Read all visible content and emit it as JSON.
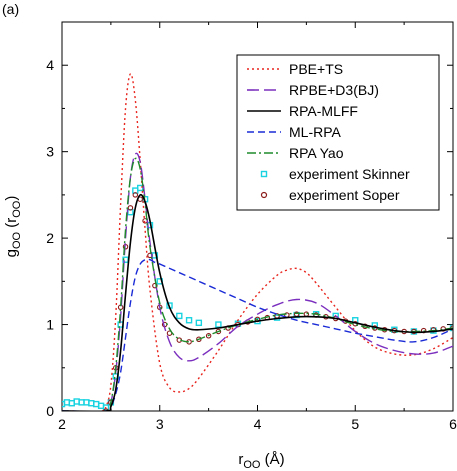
{
  "panel_label": "(a)",
  "chart_data": {
    "type": "line",
    "xlabel_main": "r",
    "xlabel_sub": "OO",
    "xlabel_unit": " (Å)",
    "ylabel_main": "g",
    "ylabel_sub": "OO",
    "ylabel_arg_open": " (r",
    "ylabel_arg_sub": "OO",
    "ylabel_arg_close": ")",
    "xlim": [
      2,
      6
    ],
    "ylim": [
      0,
      4.5
    ],
    "xticks": [
      2,
      3,
      4,
      5,
      6
    ],
    "yticks": [
      0,
      1,
      2,
      3,
      4
    ],
    "legend_position": "top-right",
    "series": [
      {
        "name": "PBE+TS",
        "color": "#e8251e",
        "style": "dotted",
        "x": [
          2.0,
          2.4,
          2.45,
          2.5,
          2.55,
          2.6,
          2.65,
          2.7,
          2.75,
          2.8,
          2.85,
          2.9,
          3.0,
          3.1,
          3.2,
          3.3,
          3.4,
          3.6,
          3.8,
          4.0,
          4.2,
          4.3,
          4.4,
          4.5,
          4.6,
          4.8,
          5.0,
          5.2,
          5.4,
          5.6,
          5.8,
          6.0
        ],
        "y": [
          0,
          0,
          0.05,
          0.3,
          1.1,
          2.4,
          3.5,
          3.9,
          3.6,
          2.9,
          2.1,
          1.4,
          0.55,
          0.27,
          0.22,
          0.26,
          0.38,
          0.7,
          1.05,
          1.35,
          1.57,
          1.63,
          1.65,
          1.6,
          1.48,
          1.2,
          0.93,
          0.74,
          0.66,
          0.65,
          0.72,
          0.85
        ]
      },
      {
        "name": "RPBE+D3(BJ)",
        "color": "#7b2fbe",
        "style": "longdash",
        "x": [
          2.0,
          2.45,
          2.5,
          2.55,
          2.6,
          2.65,
          2.7,
          2.75,
          2.8,
          2.85,
          2.9,
          3.0,
          3.1,
          3.2,
          3.3,
          3.4,
          3.6,
          3.8,
          4.0,
          4.2,
          4.4,
          4.6,
          4.8,
          5.0,
          5.2,
          5.4,
          5.6,
          5.8,
          6.0
        ],
        "y": [
          0,
          0,
          0.1,
          0.45,
          1.1,
          2.0,
          2.7,
          2.97,
          2.88,
          2.45,
          1.95,
          1.2,
          0.8,
          0.62,
          0.58,
          0.62,
          0.78,
          0.98,
          1.12,
          1.23,
          1.29,
          1.25,
          1.1,
          0.92,
          0.78,
          0.7,
          0.66,
          0.67,
          0.75
        ]
      },
      {
        "name": "RPA-MLFF",
        "color": "#000000",
        "style": "solid",
        "x": [
          2.0,
          2.45,
          2.5,
          2.55,
          2.6,
          2.65,
          2.7,
          2.75,
          2.8,
          2.85,
          2.9,
          3.0,
          3.1,
          3.2,
          3.3,
          3.4,
          3.6,
          3.8,
          4.0,
          4.2,
          4.4,
          4.6,
          4.8,
          5.0,
          5.2,
          5.4,
          5.6,
          5.8,
          6.0
        ],
        "y": [
          0,
          0,
          0.05,
          0.25,
          0.7,
          1.35,
          1.95,
          2.35,
          2.5,
          2.42,
          2.2,
          1.6,
          1.2,
          1.02,
          0.95,
          0.94,
          0.96,
          1.0,
          1.04,
          1.07,
          1.09,
          1.09,
          1.07,
          1.02,
          0.97,
          0.93,
          0.91,
          0.92,
          0.95
        ]
      },
      {
        "name": "ML-RPA",
        "color": "#1a2bd6",
        "style": "dashed",
        "x": [
          2.0,
          2.45,
          2.5,
          2.55,
          2.6,
          2.65,
          2.7,
          2.75,
          2.8,
          2.85,
          2.9,
          2.95,
          3.0,
          3.1,
          3.2,
          3.4,
          3.6,
          3.8,
          4.0,
          4.2,
          4.4,
          4.6,
          4.8,
          5.0,
          5.2,
          5.4,
          5.6,
          5.8,
          6.0
        ],
        "y": [
          0,
          0,
          0.05,
          0.2,
          0.45,
          0.85,
          1.25,
          1.55,
          1.7,
          1.75,
          1.75,
          1.72,
          1.7,
          1.65,
          1.6,
          1.5,
          1.4,
          1.3,
          1.2,
          1.12,
          1.05,
          1.0,
          0.95,
          0.9,
          0.86,
          0.82,
          0.8,
          0.85,
          0.95
        ]
      },
      {
        "name": "RPA Yao",
        "color": "#1e8a2a",
        "style": "dashdot",
        "x": [
          2.0,
          2.45,
          2.5,
          2.55,
          2.6,
          2.65,
          2.7,
          2.75,
          2.8,
          2.85,
          2.9,
          3.0,
          3.1,
          3.2,
          3.3,
          3.4,
          3.6,
          3.8,
          4.0,
          4.2,
          4.4,
          4.6,
          4.8,
          5.0,
          5.2,
          5.4,
          5.6,
          5.8,
          6.0
        ],
        "y": [
          0,
          0,
          0.1,
          0.5,
          1.2,
          2.1,
          2.7,
          2.92,
          2.8,
          2.4,
          1.9,
          1.25,
          0.95,
          0.83,
          0.8,
          0.83,
          0.92,
          1.0,
          1.06,
          1.11,
          1.13,
          1.12,
          1.07,
          1.0,
          0.95,
          0.92,
          0.92,
          0.93,
          0.96
        ]
      },
      {
        "name": "experiment Skinner",
        "color": "#19d3e0",
        "style": "square-markers",
        "x": [
          2.0,
          2.05,
          2.1,
          2.15,
          2.2,
          2.25,
          2.3,
          2.35,
          2.4,
          2.45,
          2.5,
          2.55,
          2.6,
          2.65,
          2.7,
          2.75,
          2.8,
          2.85,
          2.9,
          2.95,
          3.0,
          3.1,
          3.2,
          3.3,
          3.4,
          3.6,
          3.8,
          4.0,
          4.2,
          4.4,
          4.6,
          4.8,
          5.0,
          5.2,
          5.4,
          5.6,
          5.8,
          6.0
        ],
        "y": [
          0.08,
          0.1,
          0.09,
          0.11,
          0.1,
          0.1,
          0.09,
          0.08,
          0.06,
          0.04,
          0.1,
          0.4,
          1.0,
          1.75,
          2.3,
          2.55,
          2.58,
          2.45,
          2.15,
          1.8,
          1.5,
          1.22,
          1.1,
          1.05,
          1.02,
          1.0,
          1.01,
          1.04,
          1.08,
          1.11,
          1.12,
          1.1,
          1.05,
          0.99,
          0.94,
          0.92,
          0.93,
          0.96
        ]
      },
      {
        "name": "experiment Soper",
        "color": "#8b1a1a",
        "style": "circle-markers",
        "x": [
          2.45,
          2.5,
          2.55,
          2.6,
          2.65,
          2.7,
          2.75,
          2.8,
          2.85,
          2.9,
          2.95,
          3.0,
          3.05,
          3.1,
          3.2,
          3.3,
          3.4,
          3.5,
          3.6,
          3.7,
          3.8,
          3.9,
          4.0,
          4.1,
          4.2,
          4.3,
          4.4,
          4.5,
          4.6,
          4.7,
          4.8,
          4.9,
          5.0,
          5.1,
          5.2,
          5.3,
          5.4,
          5.5,
          5.6,
          5.7,
          5.8,
          5.9,
          6.0
        ],
        "y": [
          0.0,
          0.1,
          0.5,
          1.2,
          1.9,
          2.35,
          2.5,
          2.45,
          2.2,
          1.8,
          1.45,
          1.2,
          1.0,
          0.9,
          0.82,
          0.8,
          0.83,
          0.87,
          0.92,
          0.96,
          1.0,
          1.03,
          1.06,
          1.08,
          1.1,
          1.11,
          1.12,
          1.12,
          1.11,
          1.09,
          1.07,
          1.04,
          1.01,
          0.98,
          0.96,
          0.94,
          0.93,
          0.92,
          0.92,
          0.93,
          0.94,
          0.95,
          0.96
        ]
      }
    ]
  }
}
